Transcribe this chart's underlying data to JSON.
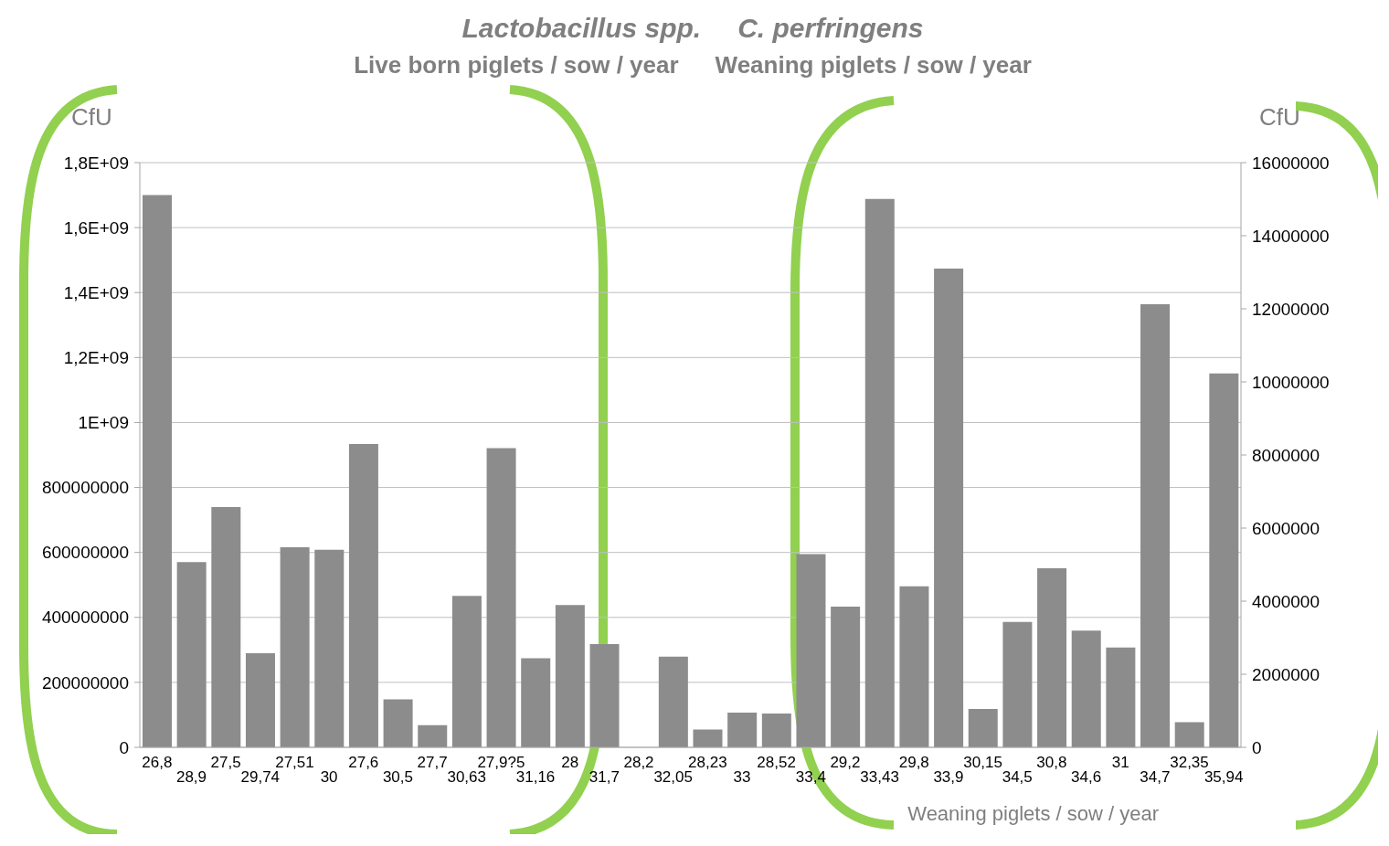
{
  "chart_data": {
    "type": "bar",
    "title": "Lactobacillus spp.",
    "subtitle": "Live born piglets / sow / year",
    "annotations": [
      "C. perfringens",
      "Weaning piglets / sow / year"
    ],
    "xlabel": "Weaning piglets / sow / year",
    "ylabel": "CfU",
    "y2label": "CfU",
    "categories": [
      "26,8",
      "28,9",
      "27,5",
      "29,74",
      "27,51",
      "30",
      "27,6",
      "30,5",
      "27,7",
      "30,63",
      "27,9?5",
      "31,16",
      "28",
      "31,7",
      "28,2",
      "32,05",
      "28,23",
      "33",
      "28,52",
      "33,4",
      "29,2",
      "33,43",
      "29,8",
      "33,9",
      "30,15",
      "34,5",
      "30,8",
      "34,6",
      "31",
      "34,7",
      "32,35",
      "35,94"
    ],
    "series": [
      {
        "color": "#8c8c8c",
        "values": [
          1700000000,
          570000000,
          740000000,
          290000000,
          616000000,
          608000000,
          934000000,
          148000000,
          68000000,
          466000000,
          921000000,
          274000000,
          438000000,
          318000000,
          0,
          279000000,
          55000000,
          107000000,
          104000000,
          595000000,
          433000000,
          1688000000,
          496000000,
          1474000000,
          118000000,
          386000000,
          551000000,
          359000000,
          307000000,
          1364000000,
          77000000,
          1151000000
        ]
      }
    ],
    "ylim": [
      0,
      1800000000
    ],
    "yticks": [
      0,
      {
        "value": 200000000,
        "label": "200000000"
      },
      {
        "value": 400000000,
        "label": "400000000"
      },
      {
        "value": 600000000,
        "label": "600000000"
      },
      {
        "value": 800000000,
        "label": "800000000"
      },
      {
        "value": 1000000000,
        "label": "1E+09"
      },
      {
        "value": 1200000000,
        "label": "1,2E+09"
      },
      {
        "value": 1400000000,
        "label": "1,4E+09"
      },
      {
        "value": 1600000000,
        "label": "1,6E+09"
      },
      {
        "value": 1800000000,
        "label": "1,8E+09"
      }
    ],
    "y2lim": [
      0,
      16000000
    ],
    "y2ticks": [
      0,
      2000000,
      4000000,
      6000000,
      8000000,
      10000000,
      12000000,
      14000000,
      16000000
    ],
    "grid": "y"
  }
}
